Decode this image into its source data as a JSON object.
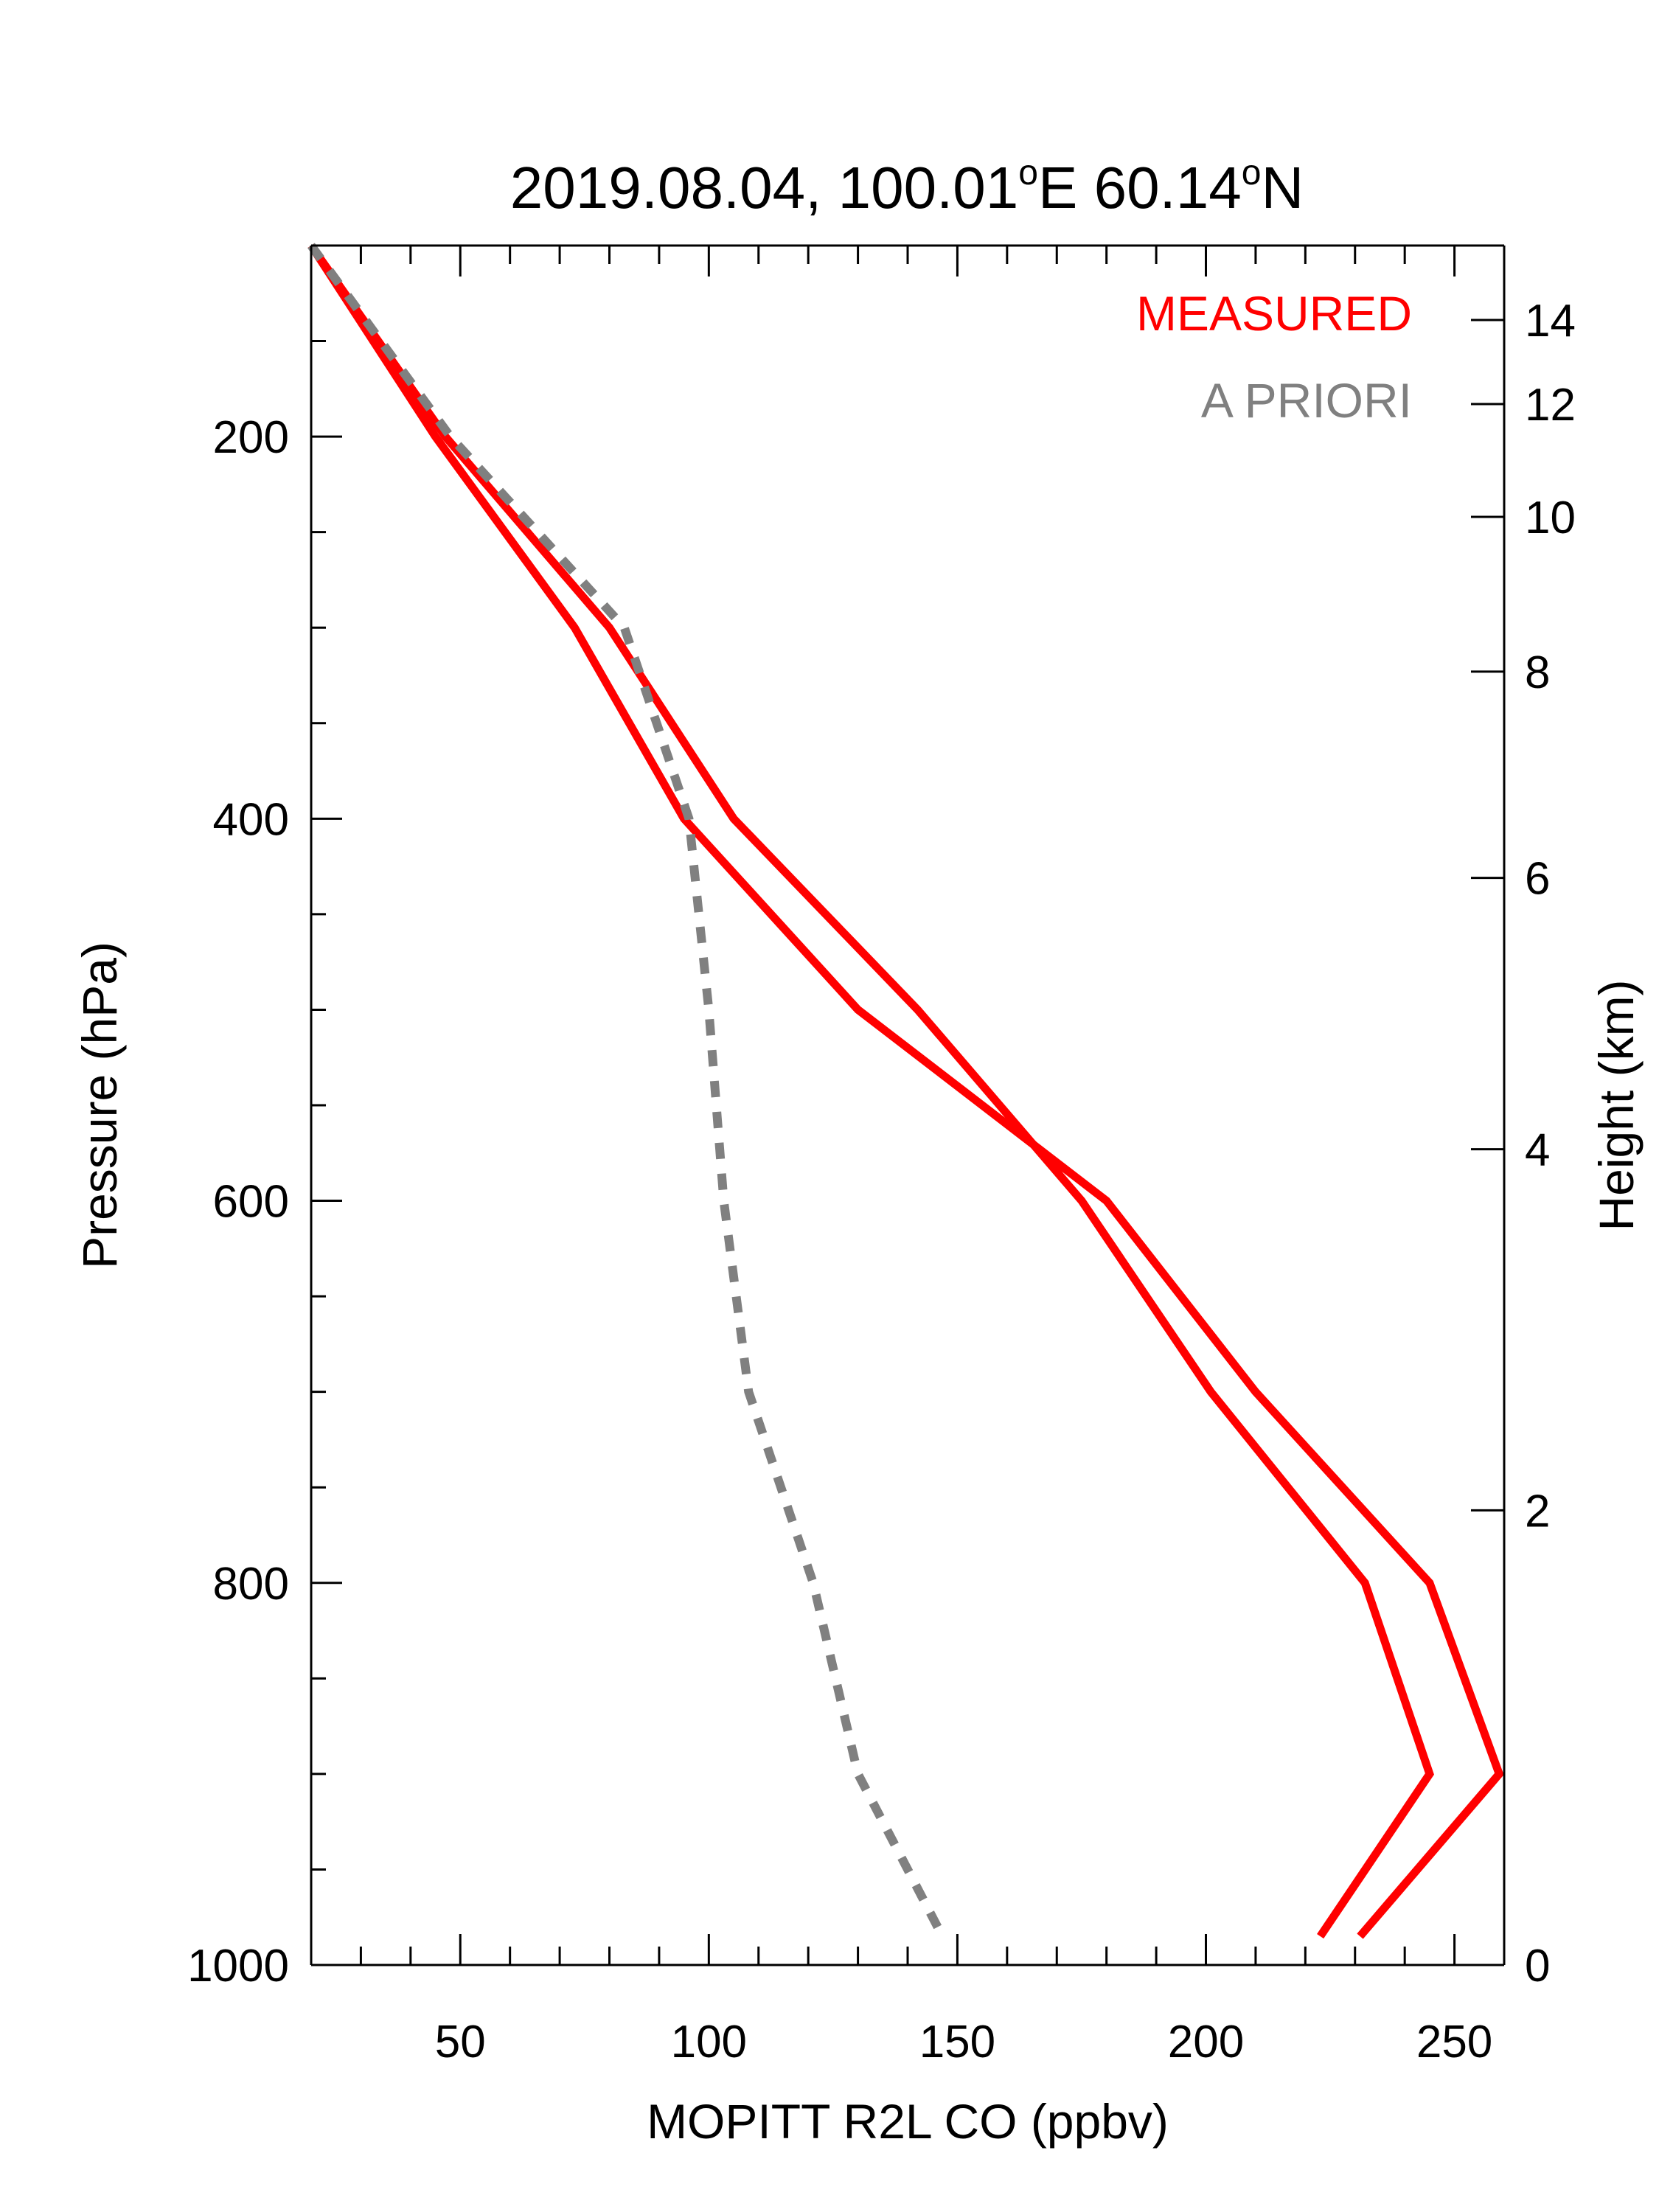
{
  "chart_data": {
    "type": "line",
    "title_parts": [
      "2019.08.04, 100.01",
      "o",
      "E 60.14",
      "o",
      "N"
    ],
    "xlabel": "MOPITT R2L CO (ppbv)",
    "ylabel": "Pressure (hPa)",
    "ylabel_right": "Height (km)",
    "xlim": [
      20,
      260
    ],
    "ylim": [
      100,
      1000
    ],
    "y_inverted": true,
    "x_ticks": [
      50,
      100,
      150,
      200,
      250
    ],
    "x_ticks_minor_step": 10,
    "y_ticks": [
      200,
      400,
      600,
      800,
      1000
    ],
    "y_ticks_minor_step": 50,
    "height_ticks": [
      {
        "label": "14",
        "pressure": 139
      },
      {
        "label": "12",
        "pressure": 183
      },
      {
        "label": "10",
        "pressure": 242
      },
      {
        "label": "8",
        "pressure": 323
      },
      {
        "label": "6",
        "pressure": 431
      },
      {
        "label": "4",
        "pressure": 573
      },
      {
        "label": "2",
        "pressure": 762
      },
      {
        "label": "0",
        "pressure": 1000
      }
    ],
    "grid": false,
    "legend_position": "top-right",
    "series": [
      {
        "name": "MEASURED",
        "color": "#ff0000",
        "style": "solid",
        "x": [
          20,
          47,
          80,
          105,
          142,
          175,
          201,
          232,
          245,
          223
        ],
        "y": [
          100,
          200,
          300,
          400,
          500,
          600,
          700,
          800,
          900,
          985
        ]
      },
      {
        "name": "",
        "color": "#ff0000",
        "style": "solid",
        "x": [
          20,
          45,
          73,
          95,
          130,
          180,
          210,
          245,
          259,
          231
        ],
        "y": [
          100,
          200,
          300,
          400,
          500,
          600,
          700,
          800,
          900,
          985
        ]
      },
      {
        "name": "A PRIORI",
        "color": "#808080",
        "style": "dashed",
        "x": [
          20,
          48,
          83,
          96,
          100,
          103,
          108,
          121,
          130,
          147
        ],
        "y": [
          100,
          200,
          300,
          400,
          500,
          600,
          700,
          800,
          900,
          985
        ]
      }
    ]
  }
}
